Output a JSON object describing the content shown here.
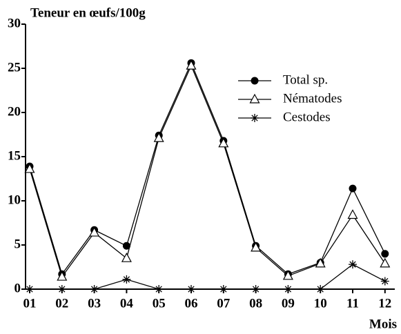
{
  "chart_data": {
    "type": "line",
    "title": "Teneur en œufs/100g",
    "x_label": "Mois",
    "categories": [
      "01",
      "02",
      "03",
      "04",
      "05",
      "06",
      "07",
      "08",
      "09",
      "10",
      "11",
      "12"
    ],
    "series": [
      {
        "name": "Total  sp.",
        "color": "#000000",
        "marker": "circle",
        "values": [
          13.9,
          1.7,
          6.7,
          4.9,
          17.4,
          25.6,
          16.8,
          4.9,
          1.7,
          3.0,
          11.4,
          4.0
        ]
      },
      {
        "name": "Nématodes",
        "color": "#000000",
        "marker": "triangle",
        "values": [
          13.6,
          1.4,
          6.4,
          3.5,
          17.1,
          25.3,
          16.5,
          4.7,
          1.5,
          2.9,
          8.4,
          2.9
        ]
      },
      {
        "name": "Cestodes",
        "color": "#000000",
        "marker": "asterisk",
        "values": [
          0,
          0,
          0,
          1.1,
          0,
          0,
          0,
          0,
          0,
          0,
          2.8,
          0.9
        ]
      }
    ],
    "ylim": [
      0,
      30
    ],
    "yticks": [
      0,
      5,
      10,
      15,
      20,
      25,
      30
    ],
    "legend": "upper right"
  }
}
